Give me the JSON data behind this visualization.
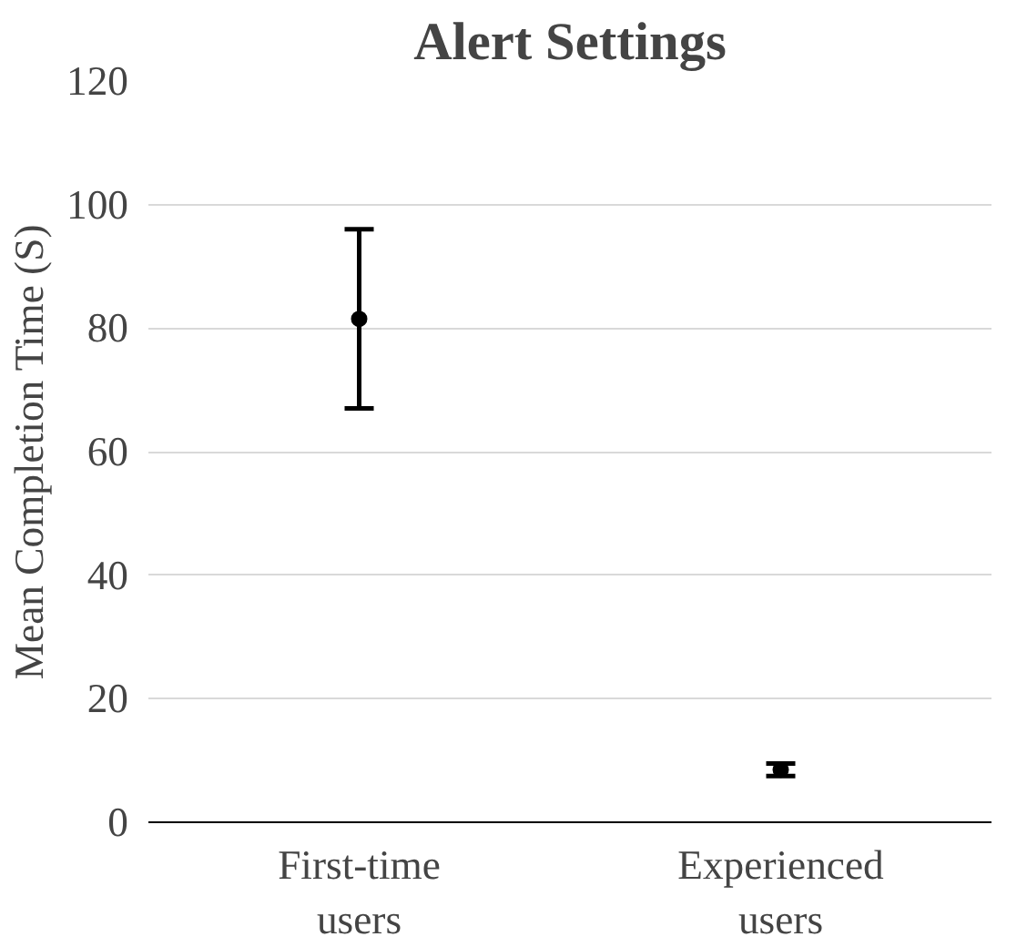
{
  "chart_data": {
    "type": "scatter",
    "title": "Alert Settings",
    "ylabel": "Mean Completion Time (S)",
    "categories": [
      "First-time\nusers",
      "Experienced\nusers"
    ],
    "values": [
      81.5,
      8.5
    ],
    "errors": [
      [
        67,
        96
      ],
      [
        7.5,
        9.5
      ]
    ],
    "color": "#000000",
    "marker": "circle",
    "ylim": [
      0,
      120
    ],
    "yticks": [
      0,
      20,
      40,
      60,
      80,
      100,
      120
    ],
    "grid": "y"
  }
}
